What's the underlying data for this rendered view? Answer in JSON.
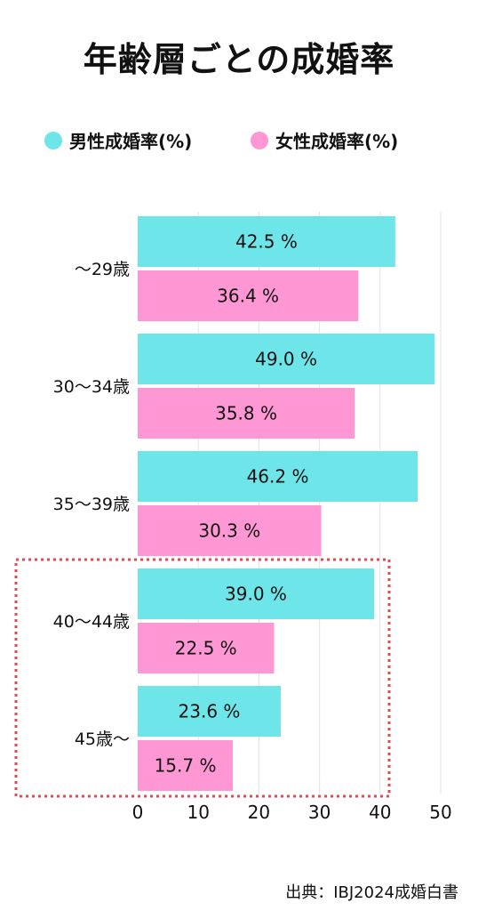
{
  "chart_data": {
    "type": "bar",
    "orientation": "horizontal",
    "title": "年齢層ごとの成婚率",
    "categories": [
      "〜29歳",
      "30〜34歳",
      "35〜39歳",
      "40〜44歳",
      "45歳〜"
    ],
    "series": [
      {
        "name": "男性成婚率(%)",
        "color": "#6de5e9",
        "values": [
          42.5,
          49.0,
          46.2,
          39.0,
          23.6
        ],
        "labels": [
          "42.5 %",
          "49.0 %",
          "46.2 %",
          "39.0 %",
          "23.6 %"
        ]
      },
      {
        "name": "女性成婚率(%)",
        "color": "#fe97d4",
        "values": [
          36.4,
          35.8,
          30.3,
          22.5,
          15.7
        ],
        "labels": [
          "36.4 %",
          "35.8 %",
          "30.3 %",
          "22.5 %",
          "15.7 %"
        ]
      }
    ],
    "xlim": [
      0,
      50
    ],
    "xticks": [
      0,
      10,
      20,
      30,
      40,
      50
    ],
    "grid": true,
    "legend_position": "top",
    "highlight_categories": [
      "40〜44歳",
      "45歳〜"
    ],
    "highlight_color": "#e8474f",
    "source": "出典：IBJ2024成婚白書"
  }
}
